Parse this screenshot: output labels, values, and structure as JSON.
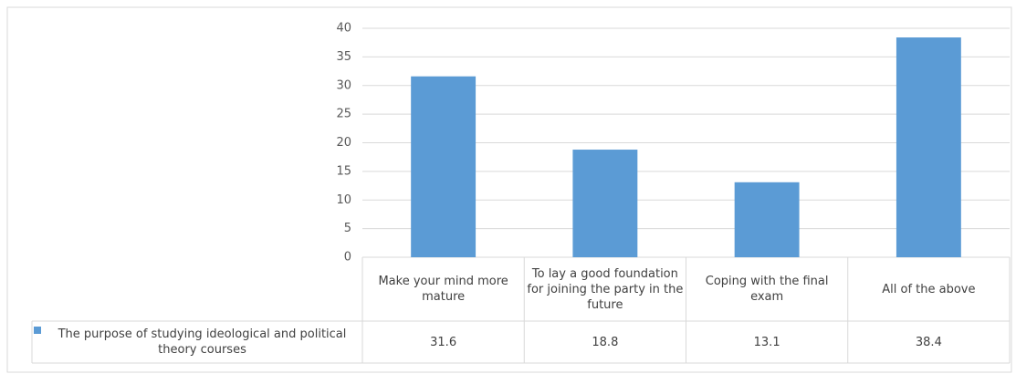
{
  "chart_data": {
    "type": "bar",
    "categories": [
      "Make your mind more mature",
      "To lay a good foundation for joining the party in the future",
      "Coping with the final exam",
      "All of the above"
    ],
    "series": [
      {
        "name": "The purpose of studying ideological and political theory courses",
        "color": "#5b9bd5",
        "values": [
          31.6,
          18.8,
          13.1,
          38.4
        ]
      }
    ],
    "ylim": [
      0,
      40
    ],
    "yticks": [
      0,
      5,
      10,
      15,
      20,
      25,
      30,
      35,
      40
    ],
    "grid": true,
    "legend": "data-table"
  }
}
